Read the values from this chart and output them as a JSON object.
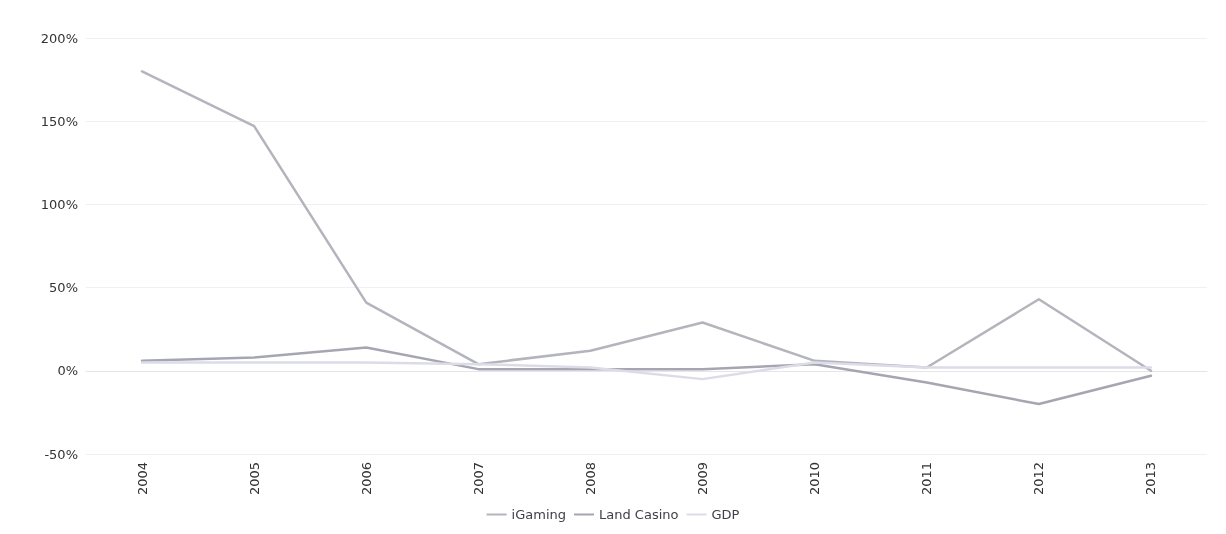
{
  "chart_data": {
    "type": "line",
    "categories": [
      "2004",
      "2005",
      "2006",
      "2007",
      "2008",
      "2009",
      "2010",
      "2011",
      "2012",
      "2013"
    ],
    "series": [
      {
        "name": "iGaming",
        "color": "#b4b4bc",
        "values": [
          180,
          147,
          41,
          4,
          12,
          29,
          6,
          2,
          43,
          0
        ]
      },
      {
        "name": "Land Casino",
        "color": "#a6a6b2",
        "values": [
          6,
          8,
          14,
          1,
          1,
          1,
          4,
          -7,
          -20,
          -3
        ]
      },
      {
        "name": "GDP",
        "color": "#dcdce8",
        "values": [
          5,
          5,
          5,
          4,
          2,
          -5,
          5,
          2,
          2,
          2
        ]
      }
    ],
    "ylim": [
      -50,
      200
    ],
    "yticks": [
      {
        "value": -50,
        "label": "-50%"
      },
      {
        "value": 0,
        "label": "0%"
      },
      {
        "value": 50,
        "label": "50%"
      },
      {
        "value": 100,
        "label": "100%"
      },
      {
        "value": 150,
        "label": "150%"
      },
      {
        "value": 200,
        "label": "200%"
      }
    ],
    "grid": "y",
    "legend": "bottom",
    "marker": "none",
    "line_style": "solid"
  }
}
